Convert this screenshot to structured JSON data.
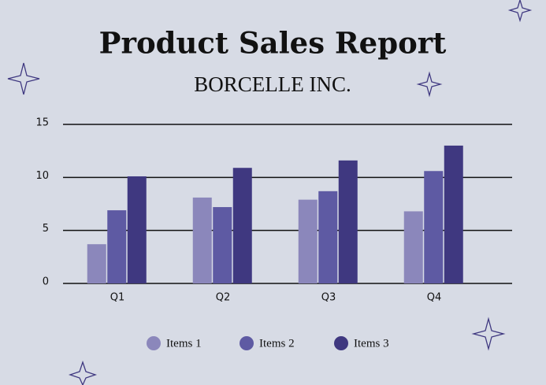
{
  "chart_data": {
    "type": "bar",
    "title": "Product Sales Report",
    "subtitle": "BORCELLE INC.",
    "categories": [
      "Q1",
      "Q2",
      "Q3",
      "Q4"
    ],
    "series": [
      {
        "name": "Items 1",
        "color": "#8b87bb",
        "values": [
          3.7,
          8.1,
          7.9,
          6.8
        ]
      },
      {
        "name": "Items 2",
        "color": "#5e5aa3",
        "values": [
          6.9,
          7.2,
          8.7,
          10.6
        ]
      },
      {
        "name": "Items 3",
        "color": "#3f3880",
        "values": [
          10.1,
          10.9,
          11.6,
          13.0
        ]
      }
    ],
    "ylim": [
      0,
      15
    ],
    "yticks": [
      0,
      5,
      10,
      15
    ],
    "grid": true
  }
}
